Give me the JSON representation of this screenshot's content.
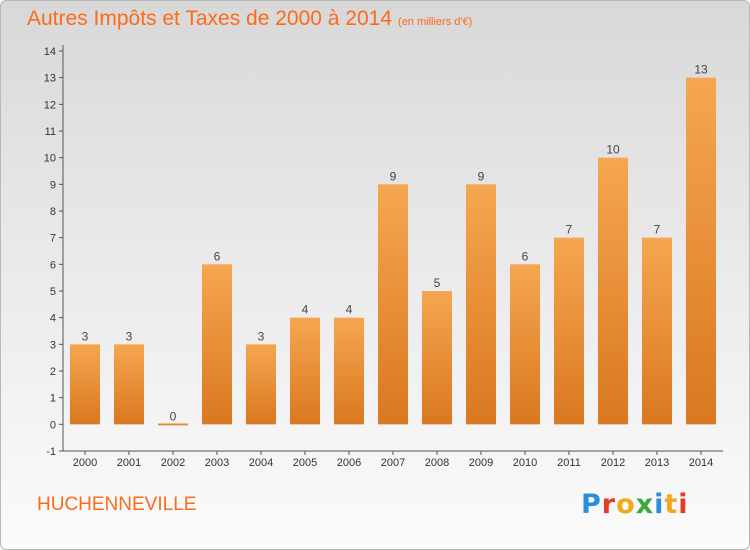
{
  "header": {
    "title": "Autres Impôts et Taxes de 2000 à 2014",
    "unit": "(en milliers d'€)"
  },
  "footer": {
    "commune": "HUCHENNEVILLE",
    "brand": "Proxiti"
  },
  "colors": {
    "accent": "#ff6a1a",
    "bar_light": "#f6a650",
    "bar_dark": "#d97820"
  },
  "chart_data": {
    "type": "bar",
    "title": "Autres Impôts et Taxes de 2000 à 2014",
    "subtitle": "(en milliers d'€)",
    "categories": [
      "2000",
      "2001",
      "2002",
      "2003",
      "2004",
      "2005",
      "2006",
      "2007",
      "2008",
      "2009",
      "2010",
      "2011",
      "2012",
      "2013",
      "2014"
    ],
    "values": [
      3,
      3,
      0,
      6,
      3,
      4,
      4,
      9,
      5,
      9,
      6,
      7,
      10,
      7,
      13
    ],
    "ylim": [
      -1,
      14
    ],
    "yticks": [
      -1,
      0,
      1,
      2,
      3,
      4,
      5,
      6,
      7,
      8,
      9,
      10,
      11,
      12,
      13,
      14
    ],
    "xlabel": "",
    "ylabel": "",
    "grid": false
  }
}
